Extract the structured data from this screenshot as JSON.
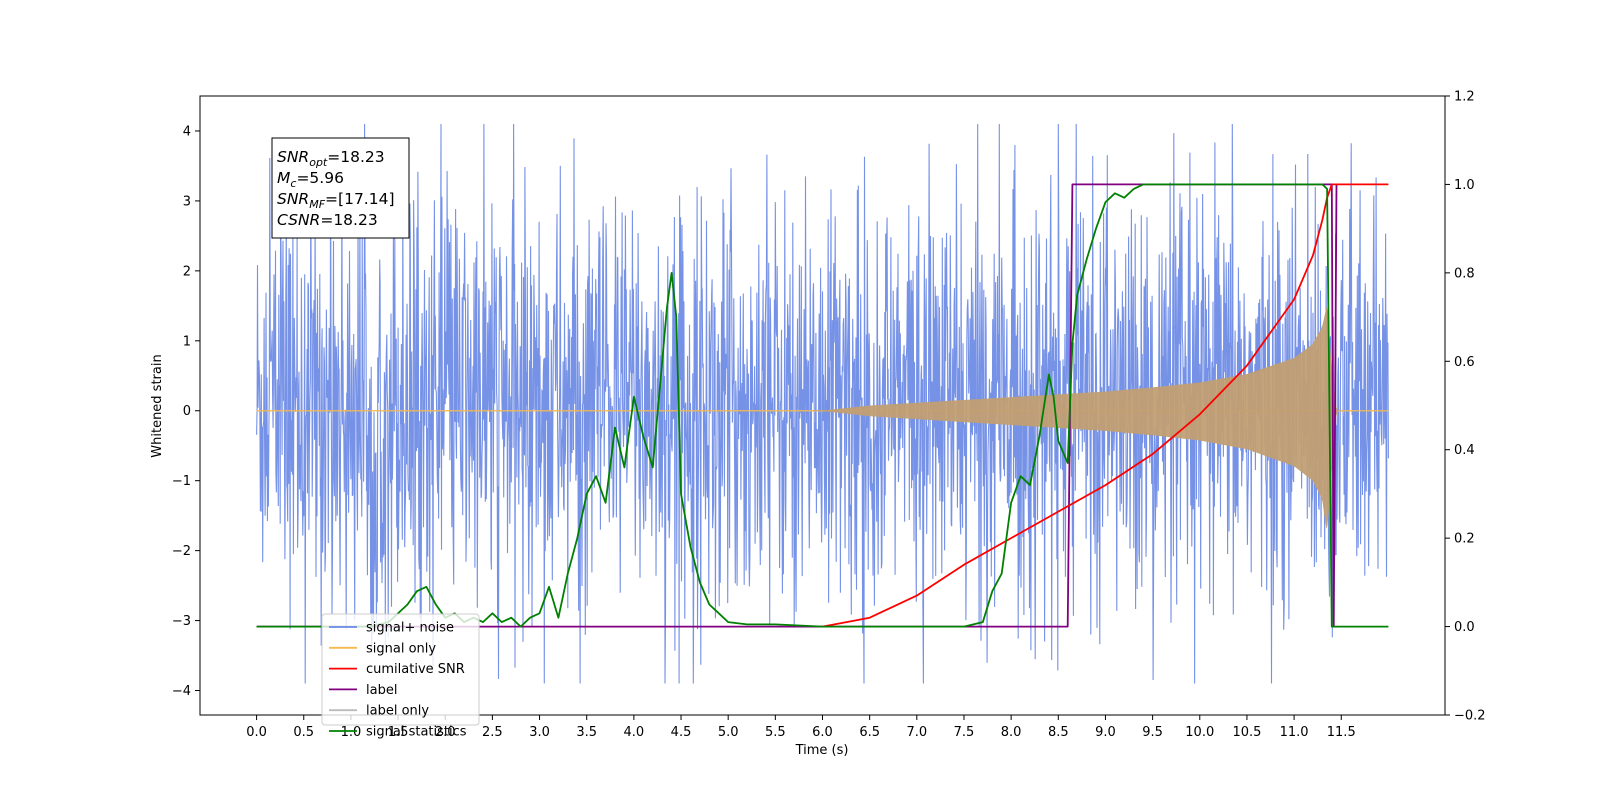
{
  "chart_data": {
    "type": "line",
    "xlabel": "Time (s)",
    "ylabel": "Whitened strain",
    "xlim": [
      -0.6,
      12.6
    ],
    "ylim": [
      -4.35,
      4.5
    ],
    "ylim_right": [
      -0.2,
      1.2
    ],
    "grid": false,
    "legend_position": "lower-left",
    "x_ticks": [
      0.0,
      0.5,
      1.0,
      1.5,
      2.0,
      2.5,
      3.0,
      3.5,
      4.0,
      4.5,
      5.0,
      5.5,
      6.0,
      6.5,
      7.0,
      7.5,
      8.0,
      8.5,
      9.0,
      9.5,
      10.0,
      10.5,
      11.0,
      11.5
    ],
    "x_tick_labels": [
      "0.0",
      "0.5",
      "1.0",
      "1.5",
      "2.0",
      "2.5",
      "3.0",
      "3.5",
      "4.0",
      "4.5",
      "5.0",
      "5.5",
      "6.0",
      "6.5",
      "7.0",
      "7.5",
      "8.0",
      "8.5",
      "9.0",
      "9.5",
      "10.0",
      "10.5",
      "11.0",
      "11.5"
    ],
    "y_ticks_left": [
      -4,
      -3,
      -2,
      -1,
      0,
      1,
      2,
      3,
      4
    ],
    "y_tick_labels_left": [
      "−4",
      "−3",
      "−2",
      "−1",
      "0",
      "1",
      "2",
      "3",
      "4"
    ],
    "y_ticks_right": [
      -0.2,
      0.0,
      0.2,
      0.4,
      0.6,
      0.8,
      1.0,
      1.2
    ],
    "y_tick_labels_right": [
      "−0.2",
      "0.0",
      "0.2",
      "0.4",
      "0.6",
      "0.8",
      "1.0",
      "1.2"
    ],
    "annotation": [
      {
        "base": "SNR",
        "sub": "opt",
        "value": "=18.23"
      },
      {
        "base": "M",
        "sub": "c",
        "value": "=5.96"
      },
      {
        "base": "SNR",
        "sub": "MF",
        "value": "=[17.14]"
      },
      {
        "base": "CSNR",
        "sub": "",
        "value": "=18.23"
      }
    ],
    "series": [
      {
        "name": "signal+ noise",
        "axis": "left",
        "color": "#6a89e5",
        "style": "noise",
        "x_range": [
          0.0,
          12.0
        ],
        "typical_range": [
          -1.8,
          2.0
        ],
        "peak_range": [
          -3.9,
          4.1
        ]
      },
      {
        "name": "signal only",
        "axis": "left",
        "color": "#f5b94d",
        "style": "chirp",
        "envelope": {
          "x": [
            0.0,
            6.0,
            6.5,
            7.0,
            7.5,
            8.0,
            8.5,
            9.0,
            9.5,
            10.0,
            10.5,
            11.0,
            11.2,
            11.3,
            11.35,
            11.4,
            11.45,
            12.0
          ],
          "amplitude": [
            0.0,
            0.0,
            0.07,
            0.11,
            0.15,
            0.19,
            0.23,
            0.27,
            0.33,
            0.4,
            0.52,
            0.75,
            0.95,
            1.2,
            1.5,
            0.5,
            0.0,
            0.0
          ]
        }
      },
      {
        "name": "cumilative SNR",
        "axis": "right",
        "color": "#ff0000",
        "x": [
          6.0,
          6.5,
          7.0,
          7.5,
          8.0,
          8.5,
          9.0,
          9.5,
          10.0,
          10.5,
          11.0,
          11.2,
          11.3,
          11.35,
          11.4,
          11.45,
          12.0
        ],
        "y": [
          0.0,
          0.02,
          0.07,
          0.14,
          0.2,
          0.26,
          0.32,
          0.39,
          0.48,
          0.59,
          0.74,
          0.84,
          0.92,
          0.97,
          1.0,
          1.0,
          1.0
        ]
      },
      {
        "name": "label",
        "axis": "right",
        "color": "#800080",
        "x": [
          0.0,
          8.6,
          8.65,
          11.4,
          11.42,
          11.45
        ],
        "y": [
          0.0,
          0.0,
          1.0,
          1.0,
          0.0,
          1.0
        ]
      },
      {
        "name": "label only",
        "axis": "right",
        "color": "#bbbbbb",
        "hidden_in_plot": true
      },
      {
        "name": "signal statistics",
        "axis": "right",
        "color": "#008000",
        "x": [
          0.0,
          1.0,
          1.2,
          1.4,
          1.6,
          1.7,
          1.8,
          1.9,
          2.0,
          2.1,
          2.2,
          2.3,
          2.4,
          2.5,
          2.6,
          2.7,
          2.8,
          2.9,
          3.0,
          3.1,
          3.2,
          3.3,
          3.4,
          3.5,
          3.6,
          3.7,
          3.8,
          3.9,
          4.0,
          4.1,
          4.2,
          4.3,
          4.35,
          4.4,
          4.45,
          4.5,
          4.6,
          4.7,
          4.8,
          4.9,
          5.0,
          5.2,
          5.5,
          6.0,
          6.5,
          7.0,
          7.5,
          7.7,
          7.8,
          7.9,
          8.0,
          8.1,
          8.2,
          8.3,
          8.4,
          8.45,
          8.5,
          8.6,
          8.65,
          8.7,
          8.8,
          8.9,
          9.0,
          9.1,
          9.2,
          9.3,
          9.4,
          9.5,
          9.7,
          10.0,
          10.5,
          11.0,
          11.3,
          11.35,
          11.4,
          11.45,
          12.0
        ],
        "y": [
          0.0,
          0.0,
          0.0,
          0.01,
          0.05,
          0.08,
          0.09,
          0.05,
          0.02,
          0.03,
          0.01,
          0.02,
          0.01,
          0.03,
          0.01,
          0.02,
          0.0,
          0.02,
          0.03,
          0.09,
          0.02,
          0.12,
          0.2,
          0.3,
          0.34,
          0.28,
          0.45,
          0.36,
          0.52,
          0.43,
          0.36,
          0.6,
          0.72,
          0.8,
          0.7,
          0.3,
          0.18,
          0.1,
          0.05,
          0.03,
          0.01,
          0.005,
          0.005,
          0.0,
          0.0,
          0.0,
          0.0,
          0.01,
          0.08,
          0.12,
          0.28,
          0.34,
          0.32,
          0.43,
          0.57,
          0.52,
          0.42,
          0.37,
          0.64,
          0.75,
          0.83,
          0.9,
          0.96,
          0.98,
          0.97,
          0.99,
          1.0,
          1.0,
          1.0,
          1.0,
          1.0,
          1.0,
          1.0,
          0.99,
          0.0,
          0.0,
          0.0
        ]
      }
    ]
  }
}
